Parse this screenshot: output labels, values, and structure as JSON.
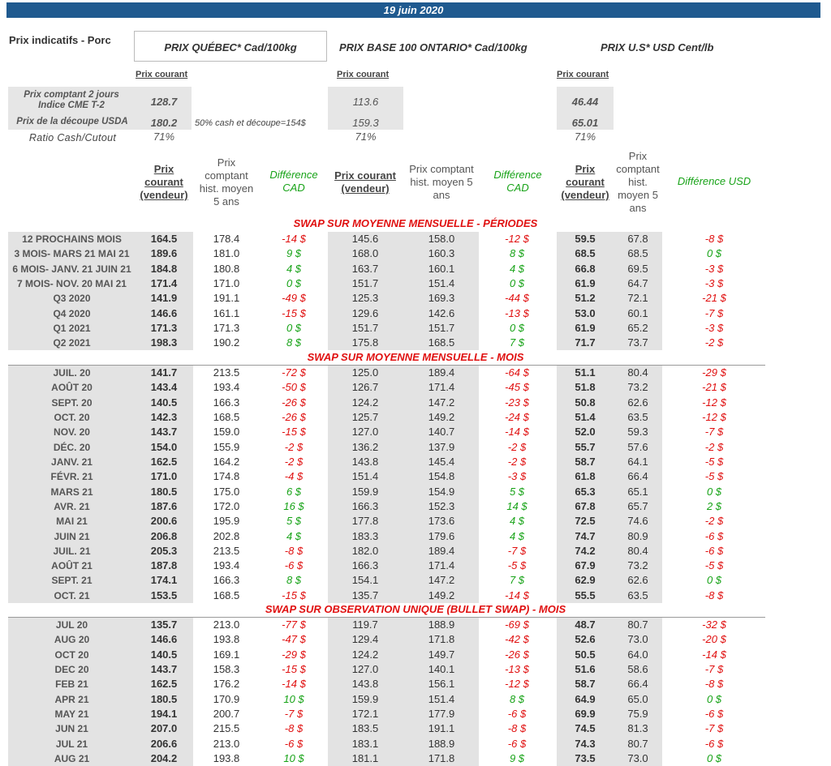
{
  "date": "19 juin 2020",
  "header": {
    "title": "Prix indicatifs - Porc",
    "quebec": "PRIX QUÉBEC* Cad/100kg",
    "ontario": "PRIX BASE 100 ONTARIO* Cad/100kg",
    "us": "PRIX U.S* USD Cent/lb",
    "prix_courant": "Prix courant"
  },
  "indicators": {
    "row1_label": "Prix comptant 2 jours Indice CME T-2",
    "row2_label": "Prix de la découpe USDA",
    "row3_label": "Ratio Cash/Cutout",
    "note": "50% cash et découpe=154$",
    "qc": {
      "cash": "128.7",
      "cutout": "180.2",
      "ratio": "71%"
    },
    "on": {
      "cash": "113.6",
      "cutout": "159.3",
      "ratio": "71%"
    },
    "us": {
      "cash": "46.44",
      "cutout": "65.01",
      "ratio": "71%"
    }
  },
  "columns": {
    "qc_current": "Prix courant (vendeur)",
    "qc_hist": "Prix comptant hist. moyen 5 ans",
    "qc_diff": "Différence CAD",
    "on_current": "Prix courant (vendeur)",
    "on_hist": "Prix comptant hist. moyen 5 ans",
    "on_diff": "Différence CAD",
    "us_current": "Prix courant (vendeur)",
    "us_hist": "Prix comptant hist. moyen 5 ans",
    "us_diff": "Différence USD"
  },
  "sections": [
    {
      "title": "SWAP SUR MOYENNE MENSUELLE - PÉRIODES",
      "rows": [
        [
          "12 PROCHAINS MOIS",
          "164.5",
          "178.4",
          "-14 $",
          "145.6",
          "158.0",
          "-12 $",
          "59.5",
          "67.8",
          "-8 $"
        ],
        [
          "3 MOIS- MARS 21 MAI 21",
          "189.6",
          "181.0",
          "9 $",
          "168.0",
          "160.3",
          "8 $",
          "68.5",
          "68.5",
          "0 $"
        ],
        [
          "6 MOIS- JANV. 21 JUIN 21",
          "184.8",
          "180.8",
          "4 $",
          "163.7",
          "160.1",
          "4 $",
          "66.8",
          "69.5",
          "-3 $"
        ],
        [
          "7 MOIS- NOV. 20 MAI 21",
          "171.4",
          "171.0",
          "0 $",
          "151.7",
          "151.4",
          "0 $",
          "61.9",
          "64.7",
          "-3 $"
        ],
        [
          "Q3 2020",
          "141.9",
          "191.1",
          "-49 $",
          "125.3",
          "169.3",
          "-44 $",
          "51.2",
          "72.1",
          "-21 $"
        ],
        [
          "Q4 2020",
          "146.6",
          "161.1",
          "-15 $",
          "129.6",
          "142.6",
          "-13 $",
          "53.0",
          "60.1",
          "-7 $"
        ],
        [
          "Q1 2021",
          "171.3",
          "171.3",
          "0 $",
          "151.7",
          "151.7",
          "0 $",
          "61.9",
          "65.2",
          "-3 $"
        ],
        [
          "Q2 2021",
          "198.3",
          "190.2",
          "8 $",
          "175.8",
          "168.5",
          "7 $",
          "71.7",
          "73.7",
          "-2 $"
        ]
      ]
    },
    {
      "title": "SWAP SUR MOYENNE MENSUELLE - MOIS",
      "rows": [
        [
          "JUIL. 20",
          "141.7",
          "213.5",
          "-72 $",
          "125.0",
          "189.4",
          "-64 $",
          "51.1",
          "80.4",
          "-29 $"
        ],
        [
          "AOÛT 20",
          "143.4",
          "193.4",
          "-50 $",
          "126.7",
          "171.4",
          "-45 $",
          "51.8",
          "73.2",
          "-21 $"
        ],
        [
          "SEPT. 20",
          "140.5",
          "166.3",
          "-26 $",
          "124.2",
          "147.2",
          "-23 $",
          "50.8",
          "62.6",
          "-12 $"
        ],
        [
          "OCT. 20",
          "142.3",
          "168.5",
          "-26 $",
          "125.7",
          "149.2",
          "-24 $",
          "51.4",
          "63.5",
          "-12 $"
        ],
        [
          "NOV. 20",
          "143.7",
          "159.0",
          "-15 $",
          "127.0",
          "140.7",
          "-14 $",
          "52.0",
          "59.3",
          "-7 $"
        ],
        [
          "DÉC. 20",
          "154.0",
          "155.9",
          "-2 $",
          "136.2",
          "137.9",
          "-2 $",
          "55.7",
          "57.6",
          "-2 $"
        ],
        [
          "JANV. 21",
          "162.5",
          "164.2",
          "-2 $",
          "143.8",
          "145.4",
          "-2 $",
          "58.7",
          "64.1",
          "-5 $"
        ],
        [
          "FÉVR. 21",
          "171.0",
          "174.8",
          "-4 $",
          "151.4",
          "154.8",
          "-3 $",
          "61.8",
          "66.4",
          "-5 $"
        ],
        [
          "MARS 21",
          "180.5",
          "175.0",
          "6 $",
          "159.9",
          "154.9",
          "5 $",
          "65.3",
          "65.1",
          "0 $"
        ],
        [
          "AVR. 21",
          "187.6",
          "172.0",
          "16 $",
          "166.3",
          "152.3",
          "14 $",
          "67.8",
          "65.7",
          "2 $"
        ],
        [
          "MAI 21",
          "200.6",
          "195.9",
          "5 $",
          "177.8",
          "173.6",
          "4 $",
          "72.5",
          "74.6",
          "-2 $"
        ],
        [
          "JUIN 21",
          "206.8",
          "202.8",
          "4 $",
          "183.3",
          "179.6",
          "4 $",
          "74.7",
          "80.9",
          "-6 $"
        ],
        [
          "JUIL. 21",
          "205.3",
          "213.5",
          "-8 $",
          "182.0",
          "189.4",
          "-7 $",
          "74.2",
          "80.4",
          "-6 $"
        ],
        [
          "AOÛT 21",
          "187.8",
          "193.4",
          "-6 $",
          "166.3",
          "171.4",
          "-5 $",
          "67.9",
          "73.2",
          "-5 $"
        ],
        [
          "SEPT. 21",
          "174.1",
          "166.3",
          "8 $",
          "154.1",
          "147.2",
          "7 $",
          "62.9",
          "62.6",
          "0 $"
        ],
        [
          "OCT. 21",
          "153.5",
          "168.5",
          "-15 $",
          "135.7",
          "149.2",
          "-14 $",
          "55.5",
          "63.5",
          "-8 $"
        ]
      ]
    },
    {
      "title": "SWAP SUR OBSERVATION UNIQUE (BULLET SWAP) - MOIS",
      "rows": [
        [
          "JUL 20",
          "135.7",
          "213.0",
          "-77 $",
          "119.7",
          "188.9",
          "-69 $",
          "48.7",
          "80.7",
          "-32 $"
        ],
        [
          "AUG 20",
          "146.6",
          "193.8",
          "-47 $",
          "129.4",
          "171.8",
          "-42 $",
          "52.6",
          "73.0",
          "-20 $"
        ],
        [
          "OCT 20",
          "140.5",
          "169.1",
          "-29 $",
          "124.2",
          "149.7",
          "-26 $",
          "50.5",
          "64.0",
          "-14 $"
        ],
        [
          "DEC 20",
          "143.7",
          "158.3",
          "-15 $",
          "127.0",
          "140.1",
          "-13 $",
          "51.6",
          "58.6",
          "-7 $"
        ],
        [
          "FEB 21",
          "162.5",
          "176.2",
          "-14 $",
          "143.8",
          "156.1",
          "-12 $",
          "58.7",
          "66.4",
          "-8 $"
        ],
        [
          "APR 21",
          "180.5",
          "170.9",
          "10 $",
          "159.9",
          "151.4",
          "8 $",
          "64.9",
          "65.0",
          "0 $"
        ],
        [
          "MAY 21",
          "194.1",
          "200.7",
          "-7 $",
          "172.1",
          "177.9",
          "-6 $",
          "69.9",
          "75.9",
          "-6 $"
        ],
        [
          "JUN 21",
          "207.0",
          "215.5",
          "-8 $",
          "183.5",
          "191.1",
          "-8 $",
          "74.5",
          "81.3",
          "-7 $"
        ],
        [
          "JUL 21",
          "206.6",
          "213.0",
          "-6 $",
          "183.1",
          "188.9",
          "-6 $",
          "74.3",
          "80.7",
          "-6 $"
        ],
        [
          "AUG 21",
          "204.2",
          "193.8",
          "10 $",
          "181.1",
          "171.8",
          "9 $",
          "73.5",
          "73.0",
          "0 $"
        ]
      ]
    }
  ]
}
